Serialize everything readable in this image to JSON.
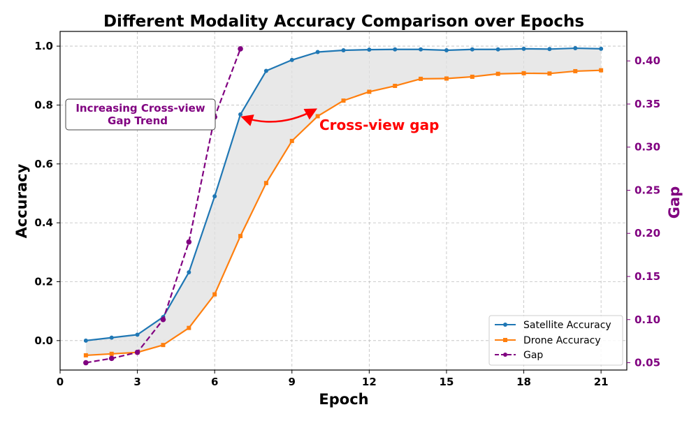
{
  "chart_data": {
    "type": "line",
    "title": "Different Modality Accuracy Comparison over Epochs",
    "xlabel": "Epoch",
    "ylabel": "Accuracy",
    "y2label": "Gap",
    "xlim": [
      0,
      22
    ],
    "ylim": [
      -0.1,
      1.05
    ],
    "y2lim": [
      0.0415,
      0.4342
    ],
    "xticks": [
      0,
      3,
      6,
      9,
      12,
      15,
      18,
      21
    ],
    "xtick_labels": [
      "0",
      "3",
      "6",
      "9",
      "12",
      "15",
      "18",
      "21"
    ],
    "yticks": [
      0.0,
      0.2,
      0.4,
      0.6,
      0.8,
      1.0
    ],
    "ytick_labels": [
      "0.0",
      "0.2",
      "0.4",
      "0.6",
      "0.8",
      "1.0"
    ],
    "y2ticks": [
      0.05,
      0.1,
      0.15,
      0.2,
      0.25,
      0.3,
      0.35,
      0.4
    ],
    "y2tick_labels": [
      "0.05",
      "0.10",
      "0.15",
      "0.20",
      "0.25",
      "0.30",
      "0.35",
      "0.40"
    ],
    "grid": true,
    "legend_position": "lower-right",
    "colors": {
      "satellite": "#1f77b4",
      "drone": "#ff7f0e",
      "gap": "#800080",
      "fill": "#e0e0e0",
      "annotation": "#ff0000"
    },
    "series": [
      {
        "name": "Satellite Accuracy",
        "axis": "left",
        "marker": "circle",
        "x": [
          1,
          2,
          3,
          4,
          5,
          6,
          7,
          8,
          9,
          10,
          11,
          12,
          13,
          14,
          15,
          16,
          17,
          18,
          19,
          20,
          21
        ],
        "values": [
          0.0,
          0.01,
          0.02,
          0.08,
          0.232,
          0.49,
          0.768,
          0.916,
          0.953,
          0.98,
          0.986,
          0.988,
          0.989,
          0.989,
          0.986,
          0.989,
          0.989,
          0.991,
          0.99,
          0.993,
          0.991
        ]
      },
      {
        "name": "Drone Accuracy",
        "axis": "left",
        "marker": "square",
        "x": [
          1,
          2,
          3,
          4,
          5,
          6,
          7,
          8,
          9,
          10,
          11,
          12,
          13,
          14,
          15,
          16,
          17,
          18,
          19,
          20,
          21
        ],
        "values": [
          -0.05,
          -0.045,
          -0.04,
          -0.015,
          0.043,
          0.157,
          0.355,
          0.535,
          0.678,
          0.762,
          0.815,
          0.845,
          0.865,
          0.889,
          0.89,
          0.896,
          0.906,
          0.908,
          0.907,
          0.915,
          0.918
        ]
      },
      {
        "name": "Gap",
        "axis": "right",
        "marker": "circle",
        "linestyle": "dashed",
        "x": [
          1,
          2,
          3,
          4,
          5,
          6,
          7
        ],
        "values": [
          0.05,
          0.055,
          0.062,
          0.1,
          0.19,
          0.335,
          0.414
        ]
      }
    ],
    "annotations": [
      {
        "text": "Increasing Cross-view\nGap Trend",
        "lines": [
          "Increasing Cross-view",
          "Gap Trend"
        ],
        "style": "boxed"
      },
      {
        "text": "Cross-view gap",
        "style": "arrow",
        "arrow_from_epoch": 7.1,
        "arrow_to_epoch": 9.9
      }
    ]
  }
}
